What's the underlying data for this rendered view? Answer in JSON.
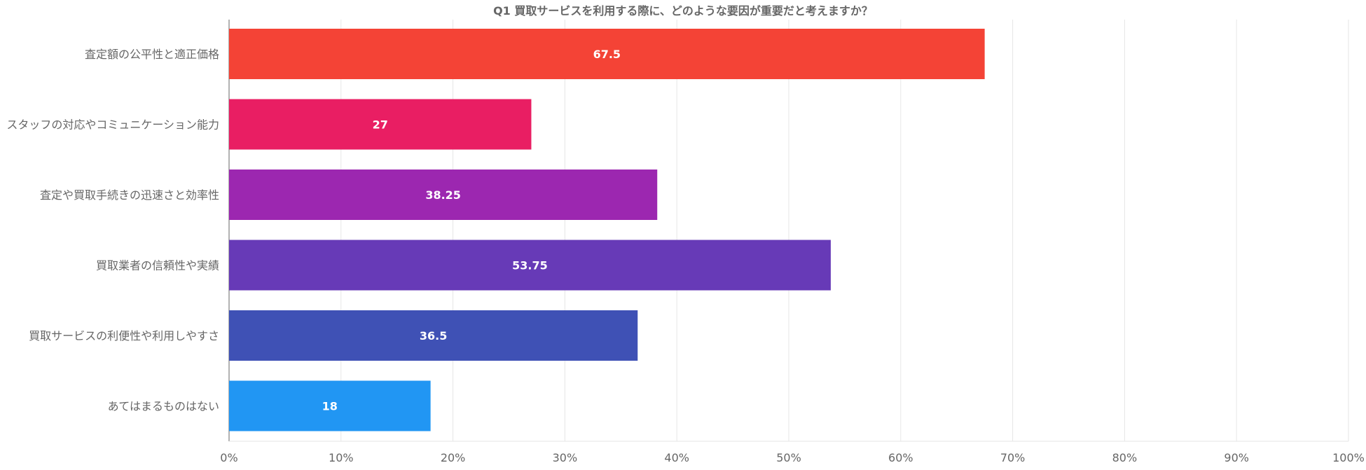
{
  "chart_data": {
    "type": "bar",
    "orientation": "horizontal",
    "title": "Q1 買取サービスを利用する際に、どのような要因が重要だと考えますか？",
    "xlabel": "",
    "ylabel": "",
    "categories": [
      "査定額の公平性と適正価格",
      "スタッフの対応やコミュニケーション能力",
      "査定や買取手続きの迅速さと効率性",
      "買取業者の信頼性や実績",
      "買取サービスの利便性や利用しやすさ",
      "あてはまるものはない"
    ],
    "values": [
      67.5,
      27,
      38.25,
      53.75,
      36.5,
      18
    ],
    "value_labels": [
      "67.5",
      "27",
      "38.25",
      "53.75",
      "36.5",
      "18"
    ],
    "colors": [
      "#f44336",
      "#e91e63",
      "#9c27b0",
      "#673ab7",
      "#3f51b5",
      "#2196f3"
    ],
    "xlim": [
      0,
      100
    ],
    "x_ticks": [
      "0%",
      "10%",
      "20%",
      "30%",
      "40%",
      "50%",
      "60%",
      "70%",
      "80%",
      "90%",
      "100%"
    ],
    "grid": true,
    "legend": "none",
    "axis_color": "#999999",
    "grid_color": "#e6e6e6",
    "title_color": "#666666",
    "label_color": "#666666"
  }
}
